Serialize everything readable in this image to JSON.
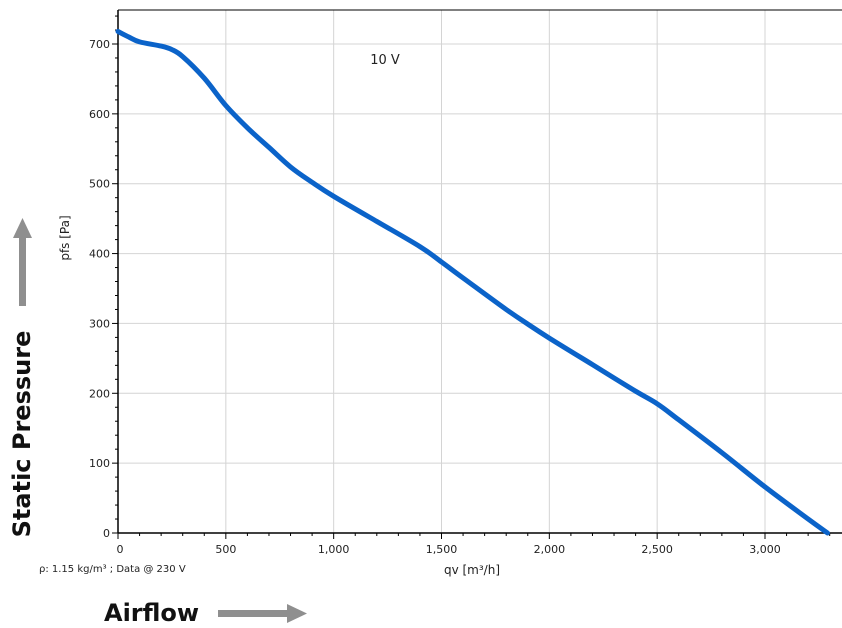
{
  "chart_data": {
    "type": "line",
    "xlabel": "qv [m³/h]",
    "ylabel": "pfs [Pa]",
    "xlim": [
      0,
      3300
    ],
    "ylim": [
      0,
      750
    ],
    "xticks": [
      0,
      500,
      1000,
      1500,
      2000,
      2500,
      3000
    ],
    "xtick_labels": [
      "0",
      "500",
      "1,000",
      "1,500",
      "2,000",
      "2,500",
      "3,000"
    ],
    "yticks": [
      0,
      100,
      200,
      300,
      400,
      500,
      600,
      700
    ],
    "ytick_labels": [
      "0",
      "100",
      "200",
      "300",
      "400",
      "500",
      "600",
      "700"
    ],
    "grid": true,
    "series": [
      {
        "name": "10 V",
        "color": "#0b63c9",
        "x": [
          0,
          50,
          100,
          200,
          250,
          300,
          400,
          500,
          600,
          700,
          800,
          900,
          1000,
          1200,
          1400,
          1500,
          1600,
          1800,
          1900,
          2000,
          2200,
          2400,
          2500,
          2600,
          2800,
          3000,
          3200,
          3290
        ],
        "y": [
          718,
          710,
          703,
          697,
          692,
          682,
          651,
          612,
          580,
          552,
          524,
          502,
          482,
          446,
          410,
          388,
          365,
          320,
          299,
          279,
          241,
          203,
          185,
          162,
          115,
          66,
          20,
          0
        ]
      }
    ]
  },
  "annotations": {
    "note": "ρ: 1.15 kg/m³ ; Data @ 230 V",
    "y_big_label": "Static Pressure",
    "x_big_label": "Airflow"
  },
  "colors": {
    "grid": "#d4d4d4",
    "axis": "#000000",
    "arrow": "#8f8f8f"
  }
}
